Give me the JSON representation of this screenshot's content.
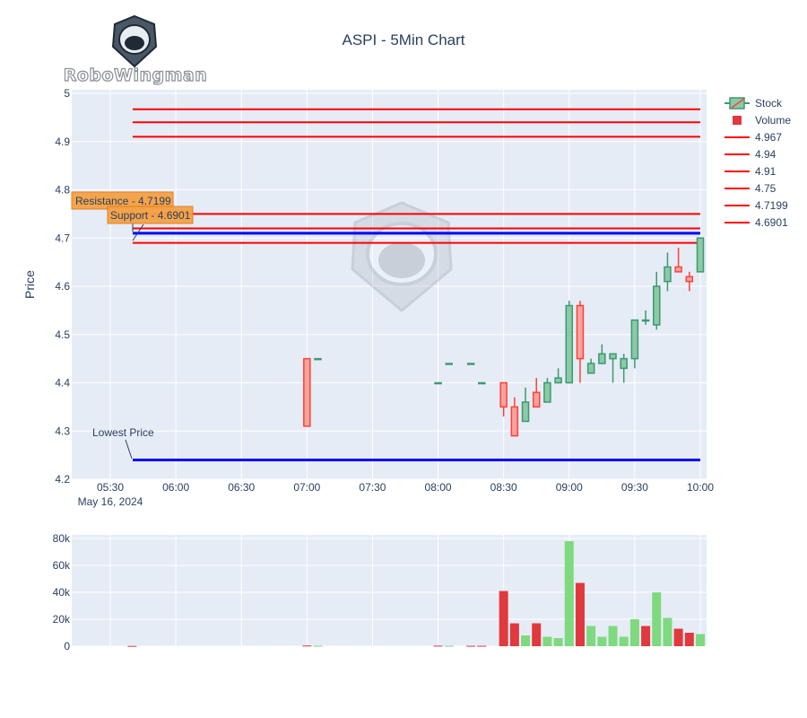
{
  "logo": {
    "text": "RoboWingman"
  },
  "chart_data": [
    {
      "type": "candlestick",
      "title": "ASPI - 5Min Chart",
      "ylabel": "Price",
      "ylim": [
        4.2,
        5.0
      ],
      "yticks": [
        "4.2",
        "4.3",
        "4.4",
        "4.5",
        "4.6",
        "4.7",
        "4.8",
        "4.9",
        "5"
      ],
      "xticks": [
        "05:30",
        "06:00",
        "06:30",
        "07:00",
        "07:30",
        "08:00",
        "08:30",
        "09:00",
        "09:30",
        "10:00"
      ],
      "xdate_label": "May 16, 2024",
      "grid": true,
      "colors": {
        "up": "#3d9970",
        "up_fill": "#8bc9a7",
        "down": "#ff4136",
        "down_fill": "#f8a39e",
        "line": "#ff0000",
        "blue": "#0000ff"
      },
      "candles": [
        {
          "t": "07:00",
          "o": 4.45,
          "h": 4.45,
          "l": 4.31,
          "c": 4.31
        },
        {
          "t": "07:05",
          "o": 4.45,
          "h": 4.45,
          "l": 4.45,
          "c": 4.45
        },
        {
          "t": "08:00",
          "o": 4.4,
          "h": 4.4,
          "l": 4.4,
          "c": 4.4
        },
        {
          "t": "08:05",
          "o": 4.44,
          "h": 4.44,
          "l": 4.44,
          "c": 4.44
        },
        {
          "t": "08:15",
          "o": 4.44,
          "h": 4.44,
          "l": 4.44,
          "c": 4.44
        },
        {
          "t": "08:20",
          "o": 4.4,
          "h": 4.4,
          "l": 4.4,
          "c": 4.4
        },
        {
          "t": "08:30",
          "o": 4.4,
          "h": 4.4,
          "l": 4.33,
          "c": 4.35
        },
        {
          "t": "08:35",
          "o": 4.35,
          "h": 4.37,
          "l": 4.29,
          "c": 4.29
        },
        {
          "t": "08:40",
          "o": 4.32,
          "h": 4.39,
          "l": 4.32,
          "c": 4.36
        },
        {
          "t": "08:45",
          "o": 4.38,
          "h": 4.41,
          "l": 4.35,
          "c": 4.35
        },
        {
          "t": "08:50",
          "o": 4.36,
          "h": 4.41,
          "l": 4.36,
          "c": 4.4
        },
        {
          "t": "08:55",
          "o": 4.4,
          "h": 4.43,
          "l": 4.4,
          "c": 4.41
        },
        {
          "t": "09:00",
          "o": 4.4,
          "h": 4.57,
          "l": 4.4,
          "c": 4.56
        },
        {
          "t": "09:05",
          "o": 4.56,
          "h": 4.57,
          "l": 4.4,
          "c": 4.45
        },
        {
          "t": "09:10",
          "o": 4.42,
          "h": 4.45,
          "l": 4.42,
          "c": 4.44
        },
        {
          "t": "09:15",
          "o": 4.44,
          "h": 4.48,
          "l": 4.44,
          "c": 4.46
        },
        {
          "t": "09:20",
          "o": 4.45,
          "h": 4.46,
          "l": 4.4,
          "c": 4.46
        },
        {
          "t": "09:25",
          "o": 4.43,
          "h": 4.46,
          "l": 4.4,
          "c": 4.45
        },
        {
          "t": "09:30",
          "o": 4.45,
          "h": 4.53,
          "l": 4.43,
          "c": 4.53
        },
        {
          "t": "09:35",
          "o": 4.53,
          "h": 4.55,
          "l": 4.52,
          "c": 4.53
        },
        {
          "t": "09:40",
          "o": 4.52,
          "h": 4.63,
          "l": 4.51,
          "c": 4.6
        },
        {
          "t": "09:45",
          "o": 4.61,
          "h": 4.67,
          "l": 4.59,
          "c": 4.64
        },
        {
          "t": "09:50",
          "o": 4.64,
          "h": 4.68,
          "l": 4.63,
          "c": 4.63
        },
        {
          "t": "09:55",
          "o": 4.62,
          "h": 4.63,
          "l": 4.59,
          "c": 4.61
        },
        {
          "t": "10:00",
          "o": 4.63,
          "h": 4.7,
          "l": 4.63,
          "c": 4.7
        }
      ],
      "hlines": [
        {
          "name": "4.967",
          "value": 4.967,
          "color": "#ff0000"
        },
        {
          "name": "4.94",
          "value": 4.94,
          "color": "#ff0000"
        },
        {
          "name": "4.91",
          "value": 4.91,
          "color": "#ff0000"
        },
        {
          "name": "4.75",
          "value": 4.75,
          "color": "#ff0000"
        },
        {
          "name": "4.7199",
          "value": 4.7199,
          "color": "#ff0000"
        },
        {
          "name": "4.6901",
          "value": 4.6901,
          "color": "#ff0000"
        },
        {
          "name": "",
          "value": 4.71,
          "color": "#0000ff"
        },
        {
          "name": "",
          "value": 4.24,
          "color": "#0000ff"
        }
      ],
      "annotations": [
        {
          "text": "Resistance - 4.7199",
          "value": 4.7199,
          "boxed": true
        },
        {
          "text": "Support - 4.6901",
          "value": 4.6901,
          "boxed": true
        },
        {
          "text": "Lowest Price",
          "value": 4.24,
          "boxed": false
        }
      ],
      "legend": {
        "position": "right",
        "items": [
          "Stock",
          "Volume",
          "4.967",
          "4.94",
          "4.91",
          "4.75",
          "4.7199",
          "4.6901"
        ]
      }
    },
    {
      "type": "bar",
      "ylim": [
        0,
        80000
      ],
      "yticks": [
        "0",
        "20k",
        "40k",
        "60k",
        "80k"
      ],
      "bars": [
        {
          "t": "05:40",
          "v": 200,
          "up": false
        },
        {
          "t": "07:00",
          "v": 500,
          "up": false
        },
        {
          "t": "07:05",
          "v": 300,
          "up": true
        },
        {
          "t": "08:00",
          "v": 400,
          "up": false
        },
        {
          "t": "08:05",
          "v": 300,
          "up": true
        },
        {
          "t": "08:15",
          "v": 300,
          "up": false
        },
        {
          "t": "08:20",
          "v": 300,
          "up": false
        },
        {
          "t": "08:30",
          "v": 41000,
          "up": false
        },
        {
          "t": "08:35",
          "v": 17000,
          "up": false
        },
        {
          "t": "08:40",
          "v": 8000,
          "up": true
        },
        {
          "t": "08:45",
          "v": 17000,
          "up": false
        },
        {
          "t": "08:50",
          "v": 7000,
          "up": true
        },
        {
          "t": "08:55",
          "v": 6000,
          "up": true
        },
        {
          "t": "09:00",
          "v": 78000,
          "up": true
        },
        {
          "t": "09:05",
          "v": 47000,
          "up": false
        },
        {
          "t": "09:10",
          "v": 15000,
          "up": true
        },
        {
          "t": "09:15",
          "v": 7000,
          "up": true
        },
        {
          "t": "09:20",
          "v": 15000,
          "up": true
        },
        {
          "t": "09:25",
          "v": 7000,
          "up": true
        },
        {
          "t": "09:30",
          "v": 20000,
          "up": true
        },
        {
          "t": "09:35",
          "v": 15000,
          "up": false
        },
        {
          "t": "09:40",
          "v": 40000,
          "up": true
        },
        {
          "t": "09:45",
          "v": 21000,
          "up": true
        },
        {
          "t": "09:50",
          "v": 13000,
          "up": false
        },
        {
          "t": "09:55",
          "v": 10000,
          "up": false
        },
        {
          "t": "10:00",
          "v": 9000,
          "up": true
        }
      ],
      "colors": {
        "up": "#7fd97f",
        "down": "#e0393e"
      }
    }
  ]
}
